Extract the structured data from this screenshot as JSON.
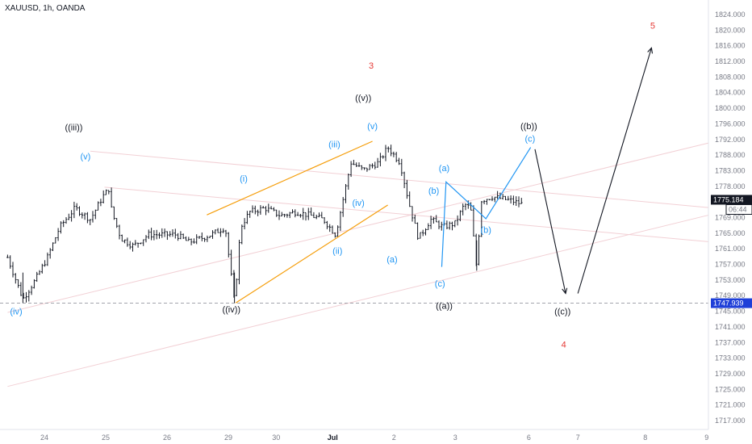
{
  "header": {
    "symbol": "XAUUSD, 1h, OANDA"
  },
  "colors": {
    "bars": "#131722",
    "wave_black": "#131722",
    "wave_blue": "#2196f3",
    "wave_red": "#e53935",
    "channel_orange": "#f59e0b",
    "trendline_pink": "#f2d0d5",
    "tag_black": "#131722",
    "tag_blue": "#1e3fd8"
  },
  "chart_data": {
    "type": "ohlc",
    "title": "XAUUSD, 1h, OANDA",
    "y_ticks": [
      "1824.000",
      "1820.000",
      "1816.000",
      "1812.000",
      "1808.000",
      "1804.000",
      "1800.000",
      "1796.000",
      "1792.000",
      "1788.000",
      "1783.000",
      "1778.000",
      "1773.000",
      "1769.000",
      "1765.000",
      "1761.000",
      "1757.000",
      "1753.000",
      "1749.000",
      "1745.000",
      "1741.000",
      "1737.000",
      "1733.000",
      "1729.000",
      "1725.000",
      "1721.000",
      "1717.000"
    ],
    "ylim": [
      1716,
      1826
    ],
    "x_ticks": [
      {
        "label": "24",
        "x": 0
      },
      {
        "label": "25",
        "x": 1
      },
      {
        "label": "26",
        "x": 2
      },
      {
        "label": "29",
        "x": 3
      },
      {
        "label": "30",
        "x": 3.78
      },
      {
        "label": "Jul",
        "x": 4.7,
        "bold": true
      },
      {
        "label": "2",
        "x": 5.7
      },
      {
        "label": "3",
        "x": 6.7
      },
      {
        "label": "6",
        "x": 7.9
      },
      {
        "label": "7",
        "x": 8.7
      },
      {
        "label": "8",
        "x": 9.8
      },
      {
        "label": "9",
        "x": 10.8
      }
    ],
    "current_price": {
      "value": "1775.184",
      "countdown": "06:44"
    },
    "marked_price": {
      "value": "1747.939"
    },
    "price_path": [
      [
        -0.6,
        1760
      ],
      [
        -0.35,
        1749
      ],
      [
        -0.15,
        1754
      ],
      [
        0.05,
        1760
      ],
      [
        0.25,
        1768
      ],
      [
        0.5,
        1773
      ],
      [
        0.75,
        1770
      ],
      [
        0.95,
        1776
      ],
      [
        1.05,
        1778
      ],
      [
        1.1,
        1772
      ],
      [
        1.25,
        1765
      ],
      [
        1.45,
        1763
      ],
      [
        1.7,
        1766
      ],
      [
        1.95,
        1766
      ],
      [
        2.15,
        1766
      ],
      [
        2.35,
        1764
      ],
      [
        2.55,
        1765
      ],
      [
        2.72,
        1766
      ],
      [
        2.95,
        1768
      ],
      [
        3.1,
        1748
      ],
      [
        3.2,
        1768
      ],
      [
        3.35,
        1772
      ],
      [
        3.6,
        1773
      ],
      [
        3.85,
        1771
      ],
      [
        4.1,
        1772
      ],
      [
        4.35,
        1771
      ],
      [
        4.55,
        1770
      ],
      [
        4.75,
        1766
      ],
      [
        4.88,
        1776
      ],
      [
        5.0,
        1785
      ],
      [
        5.2,
        1783
      ],
      [
        5.45,
        1785
      ],
      [
        5.6,
        1789
      ],
      [
        5.8,
        1785
      ],
      [
        5.95,
        1774
      ],
      [
        6.1,
        1765
      ],
      [
        6.3,
        1770
      ],
      [
        6.5,
        1768
      ],
      [
        6.7,
        1769
      ],
      [
        6.85,
        1774
      ],
      [
        6.95,
        1773
      ],
      [
        7.05,
        1757
      ],
      [
        7.12,
        1775
      ],
      [
        7.3,
        1776
      ],
      [
        7.6,
        1775
      ],
      [
        7.8,
        1774
      ]
    ],
    "wave_labels": [
      {
        "text": "((iii))",
        "x": 0.48,
        "y": 1793.5,
        "color": "black"
      },
      {
        "text": "(v)",
        "x": 0.67,
        "y": 1785.8,
        "color": "blue"
      },
      {
        "text": "(iv)",
        "x": -0.46,
        "y": 1745.0,
        "color": "blue"
      },
      {
        "text": "((iv))",
        "x": 3.05,
        "y": 1745.5,
        "color": "black"
      },
      {
        "text": "(i)",
        "x": 3.25,
        "y": 1780.0,
        "color": "blue"
      },
      {
        "text": "(ii)",
        "x": 4.78,
        "y": 1760.9,
        "color": "blue"
      },
      {
        "text": "(iii)",
        "x": 4.73,
        "y": 1789.0,
        "color": "blue"
      },
      {
        "text": "(iv)",
        "x": 5.12,
        "y": 1773.6,
        "color": "blue"
      },
      {
        "text": "(v)",
        "x": 5.35,
        "y": 1793.8,
        "color": "blue"
      },
      {
        "text": "((v))",
        "x": 5.2,
        "y": 1801.2,
        "color": "black"
      },
      {
        "text": "3",
        "x": 5.33,
        "y": 1809.8,
        "color": "red"
      },
      {
        "text": "(a)",
        "x": 5.67,
        "y": 1758.7,
        "color": "blue"
      },
      {
        "text": "(a)",
        "x": 6.52,
        "y": 1782.7,
        "color": "blue"
      },
      {
        "text": "(b)",
        "x": 6.35,
        "y": 1776.8,
        "color": "blue"
      },
      {
        "text": "(c)",
        "x": 6.45,
        "y": 1752.3,
        "color": "blue"
      },
      {
        "text": "((a))",
        "x": 6.52,
        "y": 1746.5,
        "color": "black"
      },
      {
        "text": "(b)",
        "x": 7.2,
        "y": 1766.5,
        "color": "blue"
      },
      {
        "text": "(c)",
        "x": 7.92,
        "y": 1790.5,
        "color": "blue"
      },
      {
        "text": "((b))",
        "x": 7.9,
        "y": 1793.8,
        "color": "black"
      },
      {
        "text": "((c))",
        "x": 8.45,
        "y": 1745.0,
        "color": "black"
      },
      {
        "text": "4",
        "x": 8.47,
        "y": 1736.2,
        "color": "red"
      },
      {
        "text": "5",
        "x": 9.92,
        "y": 1820.3,
        "color": "red"
      }
    ],
    "projection_black": [
      [
        8.0,
        1788.5
      ],
      [
        8.5,
        1750.5
      ]
    ],
    "projection_black_2": [
      [
        8.7,
        1750.5
      ],
      [
        9.9,
        1815.2
      ]
    ],
    "projection_blue": [
      [
        6.48,
        1757.5
      ],
      [
        6.55,
        1779.9
      ],
      [
        7.2,
        1770.2
      ],
      [
        7.93,
        1789.0
      ]
    ],
    "channel_orange": [
      [
        [
          2.65,
          1771.2
        ],
        [
          5.35,
          1790.6
        ]
      ],
      [
        [
          3.12,
          1748.0
        ],
        [
          5.6,
          1773.8
        ]
      ]
    ],
    "trendlines_pink": [
      [
        [
          0.75,
          1788.0
        ],
        [
          10.92,
          1773.0
        ]
      ],
      [
        [
          0.98,
          1778.5
        ],
        [
          10.92,
          1764.0
        ]
      ],
      [
        [
          -0.6,
          1745.5
        ],
        [
          10.92,
          1790.5
        ]
      ],
      [
        [
          -0.6,
          1726.0
        ],
        [
          10.92,
          1771.5
        ]
      ]
    ]
  }
}
